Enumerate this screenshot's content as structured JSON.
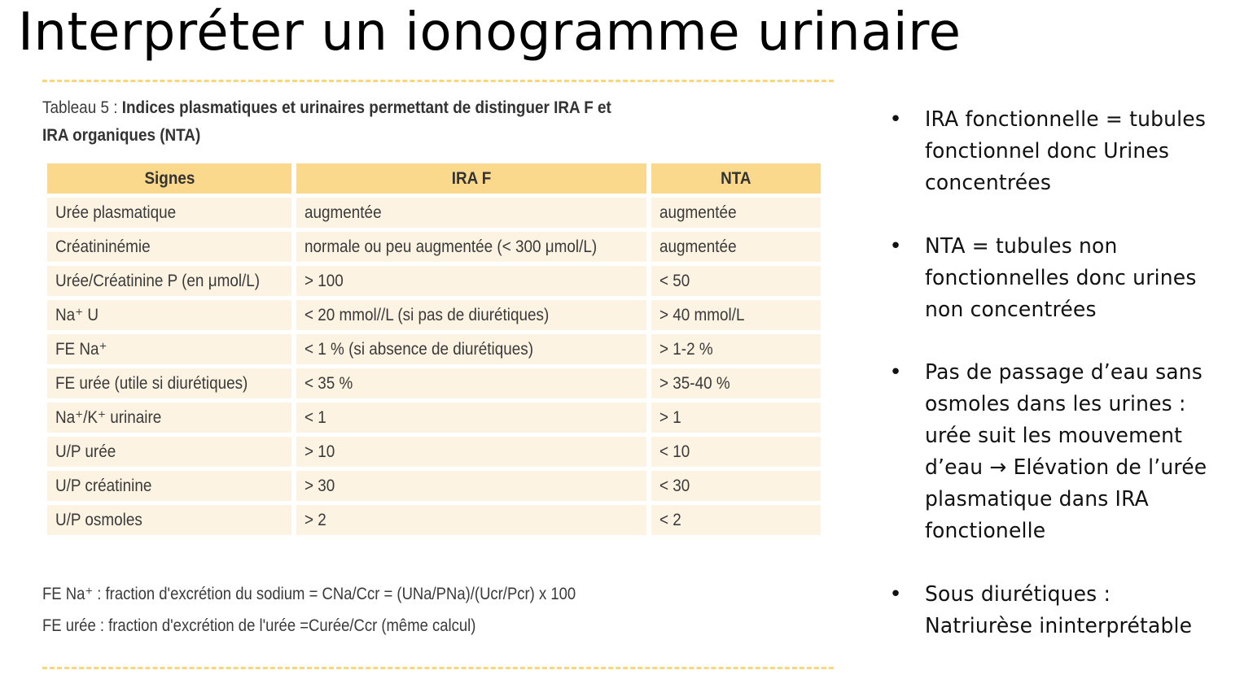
{
  "slide": {
    "title": "Interpréter un ionogramme urinaire"
  },
  "caption": {
    "prefix": "Tableau 5 : ",
    "text": "Indices plasmatiques et urinaires permettant de distinguer IRA F et IRA organiques (NTA)"
  },
  "table": {
    "headers": [
      "Signes",
      "IRA F",
      "NTA"
    ],
    "rows": [
      [
        "Urée plasmatique",
        "augmentée",
        "augmentée"
      ],
      [
        "Créatininémie",
        "normale ou peu augmentée (< 300 μmol/L)",
        "augmentée"
      ],
      [
        "Urée/Créatinine P (en μmol/L)",
        "> 100",
        "< 50"
      ],
      [
        "Na⁺ U",
        "< 20 mmol//L (si pas de diurétiques)",
        "> 40 mmol/L"
      ],
      [
        "FE Na⁺",
        "< 1 % (si absence de diurétiques)",
        "> 1-2 %"
      ],
      [
        "FE urée (utile si diurétiques)",
        "< 35 %",
        "> 35-40 %"
      ],
      [
        "Na⁺/K⁺ urinaire",
        "< 1",
        "> 1"
      ],
      [
        "U/P urée",
        "> 10",
        "< 10"
      ],
      [
        "U/P créatinine",
        "> 30",
        "< 30"
      ],
      [
        "U/P osmoles",
        "> 2",
        "< 2"
      ]
    ]
  },
  "footnotes": [
    "FE Na⁺ : fraction d'excrétion du sodium = CNa/Ccr = (UNa/PNa)/(Ucr/Pcr) x 100",
    "FE urée : fraction d'excrétion de l'urée =Curée/Ccr (même calcul)"
  ],
  "bullets": [
    "IRA fonctionnelle = tubules\nfonctionnel donc Urines\nconcentrées",
    "NTA =  tubules non\nfonctionnelles donc urines\nnon concentrées",
    "Pas de passage d’eau sans\nosmoles dans les urines :\nurée suit les mouvement\nd’eau → Elévation de l’urée\nplasmatique dans IRA\nfonctionelle",
    "Sous diurétiques :\nNatriurèse ininterprétable"
  ],
  "bullet_symbol": "•",
  "colors": {
    "header_fill": "#fbd98c",
    "cell_fill": "#fdf3e2",
    "dash": "#f7d77a"
  }
}
